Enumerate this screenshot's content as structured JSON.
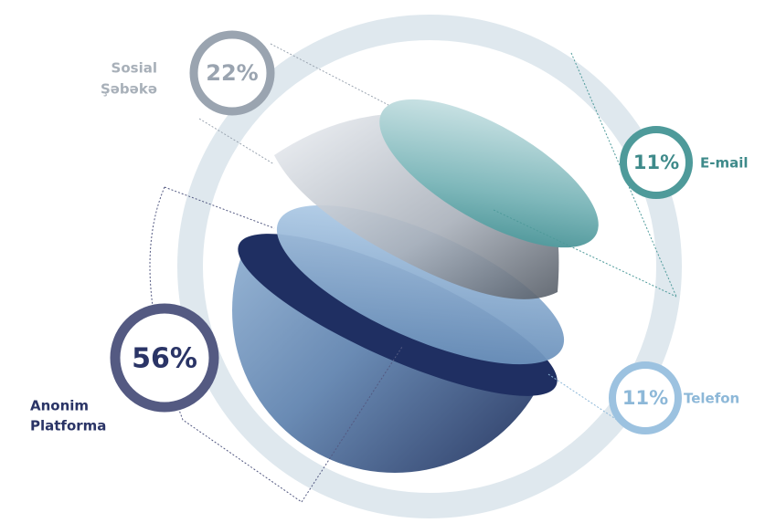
{
  "items": [
    {
      "value": "22%",
      "label": [
        "Sosial",
        "Şəbəkə"
      ]
    },
    {
      "value": "11%",
      "label": [
        "E-mail"
      ]
    },
    {
      "value": "11%",
      "label": [
        "Telefon"
      ]
    },
    {
      "value": "56%",
      "label": [
        "Anonim",
        "Platforma"
      ]
    }
  ]
}
